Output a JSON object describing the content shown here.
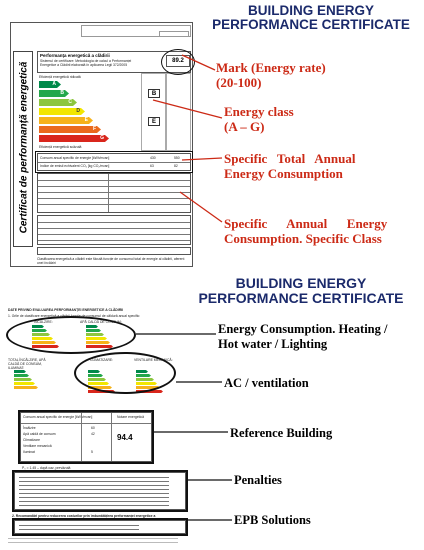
{
  "top_title": [
    "BUILDING ENERGY",
    "PERFORMANCE CERTIFICATE"
  ],
  "bottom_title": [
    "BUILDING ENERGY",
    "PERFORMANCE CERTIFICATE"
  ],
  "colors": {
    "title": "#1b2a6b",
    "red_label": "#cc2a16",
    "energy_classes": [
      "#00894a",
      "#23a74b",
      "#8cc63f",
      "#f2e600",
      "#f6b21a",
      "#ea6a1d",
      "#d9261c"
    ]
  },
  "callouts_top": [
    {
      "lines": [
        "Mark (Energy rate)",
        "(20-100)"
      ]
    },
    {
      "lines": [
        "Energy class",
        "(A – G)"
      ]
    },
    {
      "lines": [
        "Specific   Total   Annual",
        "Energy Consumption"
      ]
    },
    {
      "lines": [
        "Specific      Annual      Energy",
        "Consumption. Specific Class"
      ]
    }
  ],
  "callouts_bottom": [
    {
      "lines": [
        "Energy Consumption. Heating /",
        "Hot water / Lighting"
      ]
    },
    {
      "lines": [
        "AC / ventilation"
      ]
    },
    {
      "lines": [
        "Reference Building"
      ]
    },
    {
      "lines": [
        "Penalties"
      ]
    },
    {
      "lines": [
        "EPB Solutions"
      ]
    }
  ],
  "cert1": {
    "vertical_title": "Certificat de performanță energetică",
    "header_title": "Performanța energetică a clădirii",
    "score": "89.2",
    "class_letters": [
      "A",
      "B",
      "C",
      "D",
      "E",
      "F",
      "G"
    ],
    "marker_left": "B",
    "marker_right": "E",
    "row_consumption": "Consum anual specific de energie  [kWh/m²an]",
    "row_co2": "Indice de emisii echivalent CO₂  [kg CO₂/m²an]",
    "val_consumption": [
      "430",
      "550"
    ],
    "val_co2": [
      "63",
      "82"
    ]
  },
  "cert2": {
    "section1": "DATE PRIVIND EVALUAREA PERFORMANȚEI ENERGETICE A CLĂDIRII",
    "section1a": "1. Grile de clasificare energetică a clădirii funcție de consumul de căldură anual specific:",
    "label_heating": "ÎNCĂLZIRE:",
    "label_hotwater": "APĂ CALDĂ DE CONSUM:",
    "label_total": "TOTAL ÎNCĂLZIRE, APĂ CALDĂ DE CONSUM, ILUMINAT:",
    "label_ac": "CLIMATIZARE:",
    "label_vent": "VENTILARE MECANICĂ:",
    "ref_header": "Consum anual specific de energie [kWh/m²an]",
    "ref_header2": "Notare energetică",
    "ref_score": "94.4",
    "ref_rows": [
      "Încălzire",
      "Apă caldă de consum",
      "Climatizare",
      "Ventilare mecanică",
      "Iluminat"
    ],
    "ref_values": [
      "60",
      "42",
      "",
      "",
      "5"
    ],
    "penalty_formula": "P₀ = 1.45 – după caz, prevăzută",
    "solutions_title": "2. Recomandări pentru reducerea costurilor prin îmbunătățirea performanței energetice a clădirii:"
  }
}
